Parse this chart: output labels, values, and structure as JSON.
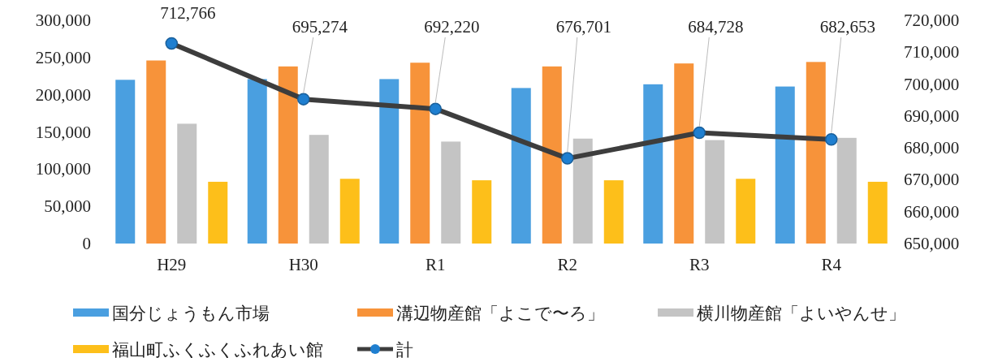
{
  "chart_data": {
    "type": "bar",
    "categories": [
      "H29",
      "H30",
      "R1",
      "R2",
      "R3",
      "R4"
    ],
    "series": [
      {
        "name": "国分じょうもん市場",
        "color": "#4a9fe0",
        "values": [
          220000,
          221000,
          221000,
          209000,
          214000,
          211000
        ]
      },
      {
        "name": "溝辺物産館「よこで〜ろ」",
        "color": "#f7933a",
        "values": [
          246000,
          238000,
          243000,
          238000,
          242000,
          244000
        ]
      },
      {
        "name": "横川物産館「よいやんせ」",
        "color": "#c4c4c4",
        "values": [
          161000,
          146000,
          137000,
          141000,
          139000,
          142000
        ]
      },
      {
        "name": "福山町ふくふくふれあい館",
        "color": "#fdbf1a",
        "values": [
          83000,
          87000,
          85000,
          85000,
          87000,
          83000
        ]
      },
      {
        "name": "計",
        "type": "line",
        "axis": "y2",
        "color": "#3d3d3d",
        "marker": "circle",
        "value_labels": [
          "712,766",
          "695,274",
          "692,220",
          "676,701",
          "684,728",
          "682,653"
        ],
        "values": [
          712766,
          695274,
          692220,
          676701,
          684728,
          682653
        ]
      }
    ],
    "ylim": [
      0,
      300000
    ],
    "yticks": [
      {
        "value": 0,
        "label": "0"
      },
      {
        "value": 50000,
        "label": "50,000"
      },
      {
        "value": 100000,
        "label": "100,000"
      },
      {
        "value": 150000,
        "label": "150,000"
      },
      {
        "value": 200000,
        "label": "200,000"
      },
      {
        "value": 250000,
        "label": "250,000"
      },
      {
        "value": 300000,
        "label": "300,000"
      }
    ],
    "y2lim": [
      650000,
      720000
    ],
    "y2ticks": [
      {
        "value": 650000,
        "label": "650,000"
      },
      {
        "value": 660000,
        "label": "660,000"
      },
      {
        "value": 670000,
        "label": "670,000"
      },
      {
        "value": 680000,
        "label": "680,000"
      },
      {
        "value": 690000,
        "label": "690,000"
      },
      {
        "value": 700000,
        "label": "700,000"
      },
      {
        "value": 710000,
        "label": "710,000"
      },
      {
        "value": 720000,
        "label": "720,000"
      }
    ],
    "grid": false,
    "legend": "bottom"
  }
}
